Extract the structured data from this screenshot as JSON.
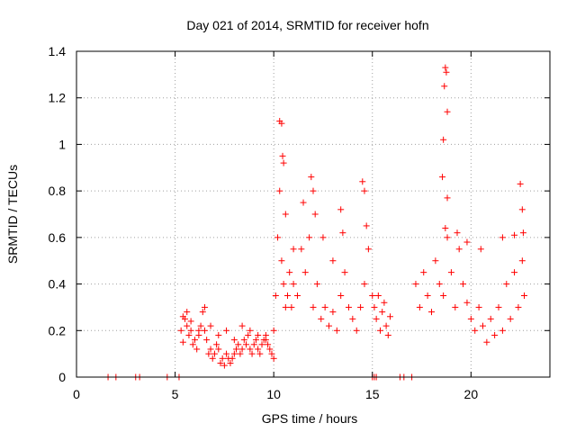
{
  "chart_data": {
    "type": "scatter",
    "title": "Day 021 of 2014, SRMTID for receiver hofn",
    "xlabel": "GPS time / hours",
    "ylabel": "SRMTID / TECUs",
    "xlim": [
      0,
      24
    ],
    "ylim": [
      0,
      1.4
    ],
    "x_ticks": [
      0,
      5,
      10,
      15,
      20
    ],
    "x_tick_labels": [
      "0",
      "5",
      "10",
      "15",
      "20"
    ],
    "y_ticks": [
      0,
      0.2,
      0.4,
      0.6,
      0.8,
      1.0,
      1.2,
      1.4
    ],
    "y_tick_labels": [
      "0",
      "0.2",
      "0.4",
      "0.6",
      "0.8",
      "1",
      "1.2",
      "1.4"
    ],
    "grid": true,
    "marker": "plus",
    "series": [
      {
        "name": "SRMTID",
        "color": "#ff0000",
        "x": [
          1.6,
          2.0,
          3.0,
          3.2,
          4.6,
          5.2,
          5.3,
          5.4,
          5.5,
          5.6,
          5.7,
          5.8,
          5.9,
          6.0,
          6.1,
          6.2,
          6.3,
          6.4,
          6.5,
          6.6,
          6.7,
          6.8,
          6.9,
          7.0,
          7.1,
          7.2,
          7.3,
          7.4,
          7.5,
          7.6,
          7.7,
          7.8,
          7.9,
          8.0,
          8.1,
          8.2,
          8.3,
          8.4,
          8.5,
          8.6,
          8.7,
          8.8,
          8.9,
          9.0,
          9.1,
          9.2,
          9.3,
          9.4,
          9.5,
          9.6,
          9.7,
          9.8,
          9.9,
          10.0,
          5.4,
          5.6,
          5.8,
          6.2,
          6.5,
          6.8,
          7.2,
          7.6,
          8.0,
          8.4,
          8.8,
          9.2,
          9.6,
          10.0,
          10.1,
          10.2,
          10.3,
          10.4,
          10.5,
          10.6,
          10.7,
          10.8,
          10.9,
          11.0,
          11.2,
          11.4,
          11.6,
          11.8,
          12.0,
          12.2,
          12.4,
          12.6,
          12.8,
          13.0,
          13.2,
          13.4,
          13.6,
          13.8,
          14.0,
          14.2,
          14.4,
          14.6,
          14.8,
          15.0,
          10.3,
          10.4,
          10.45,
          10.5,
          10.6,
          11.0,
          11.5,
          11.9,
          12.0,
          12.1,
          12.5,
          13.0,
          13.4,
          13.5,
          14.5,
          14.6,
          14.7,
          15.1,
          15.2,
          15.3,
          15.4,
          15.5,
          15.6,
          15.7,
          15.8,
          15.9,
          15.0,
          15.1,
          15.2,
          16.4,
          16.6,
          17.0,
          17.2,
          17.4,
          17.6,
          17.8,
          18.0,
          18.2,
          18.4,
          18.6,
          18.8,
          19.0,
          19.2,
          19.4,
          19.6,
          19.8,
          20.0,
          20.2,
          20.4,
          20.6,
          20.8,
          21.0,
          21.2,
          21.4,
          21.6,
          21.8,
          22.0,
          22.2,
          22.4,
          22.6,
          22.7,
          18.55,
          18.6,
          18.65,
          18.7,
          18.75,
          18.8,
          18.8,
          18.7,
          19.3,
          19.8,
          20.5,
          21.6,
          22.2,
          22.5,
          22.6,
          22.65
        ],
        "y": [
          0,
          0,
          0,
          0,
          0,
          0,
          0.2,
          0.15,
          0.25,
          0.22,
          0.18,
          0.2,
          0.14,
          0.16,
          0.12,
          0.18,
          0.22,
          0.28,
          0.2,
          0.16,
          0.1,
          0.12,
          0.08,
          0.1,
          0.14,
          0.12,
          0.06,
          0.08,
          0.05,
          0.1,
          0.08,
          0.06,
          0.08,
          0.1,
          0.12,
          0.14,
          0.1,
          0.12,
          0.16,
          0.14,
          0.18,
          0.12,
          0.1,
          0.14,
          0.16,
          0.12,
          0.1,
          0.14,
          0.16,
          0.18,
          0.14,
          0.12,
          0.1,
          0.08,
          0.26,
          0.28,
          0.24,
          0.2,
          0.3,
          0.22,
          0.18,
          0.2,
          0.16,
          0.22,
          0.2,
          0.18,
          0.16,
          0.2,
          0.35,
          0.6,
          0.8,
          0.5,
          0.4,
          0.3,
          0.35,
          0.45,
          0.3,
          0.4,
          0.35,
          0.55,
          0.45,
          0.6,
          0.3,
          0.4,
          0.25,
          0.3,
          0.22,
          0.28,
          0.2,
          0.35,
          0.45,
          0.3,
          0.25,
          0.2,
          0.3,
          0.4,
          0.55,
          0.35,
          1.1,
          1.09,
          0.95,
          0.92,
          0.7,
          0.55,
          0.75,
          0.86,
          0.8,
          0.7,
          0.6,
          0.5,
          0.72,
          0.62,
          0.84,
          0.8,
          0.65,
          0.3,
          0.25,
          0.35,
          0.2,
          0.28,
          0.32,
          0.22,
          0.18,
          0.26,
          0,
          0,
          0,
          0,
          0,
          0,
          0.4,
          0.3,
          0.45,
          0.35,
          0.28,
          0.5,
          0.4,
          0.35,
          0.6,
          0.45,
          0.3,
          0.55,
          0.4,
          0.32,
          0.25,
          0.2,
          0.3,
          0.22,
          0.15,
          0.25,
          0.18,
          0.3,
          0.2,
          0.4,
          0.25,
          0.45,
          0.3,
          0.5,
          0.35,
          0.86,
          1.02,
          1.25,
          1.33,
          1.31,
          1.14,
          0.77,
          0.64,
          0.62,
          0.58,
          0.55,
          0.6,
          0.61,
          0.83,
          0.72,
          0.62
        ]
      }
    ]
  }
}
